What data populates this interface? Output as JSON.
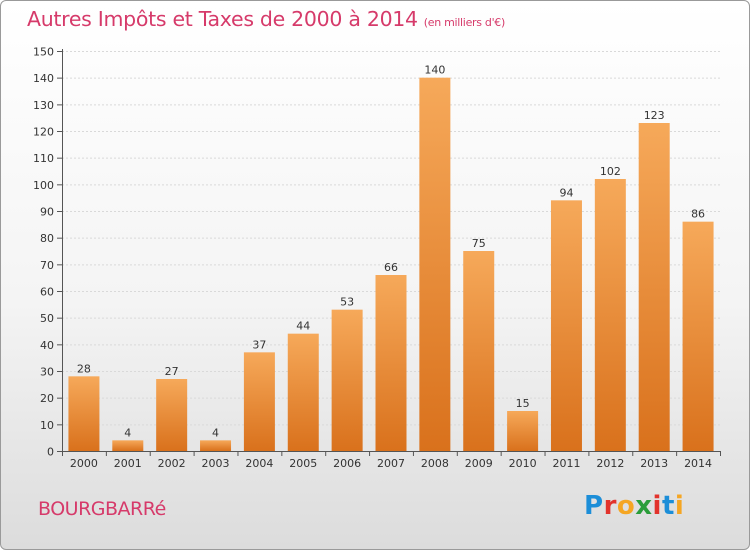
{
  "header": {
    "title": "Autres Impôts et Taxes de 2000 à 2014",
    "subtitle": "(en milliers d'€)"
  },
  "footer": {
    "commune": "BOURGBARRé",
    "brand_letters": [
      "P",
      "r",
      "o",
      "x",
      "i",
      "t",
      "i"
    ],
    "brand_colors": [
      "#1c8ed8",
      "#e2332c",
      "#f5a623",
      "#2a9d3a",
      "#e2332c",
      "#1c8ed8",
      "#f5a623"
    ]
  },
  "colors": {
    "bar_top": "#f6a95a",
    "bar_bottom": "#d9711c",
    "axis": "#555555",
    "grid": "#d9d9d9",
    "title": "#d63a6a"
  },
  "chart_data": {
    "type": "bar",
    "title": "Autres Impôts et Taxes de 2000 à 2014",
    "subtitle": "(en milliers d'€)",
    "xlabel": "",
    "ylabel": "",
    "categories": [
      "2000",
      "2001",
      "2002",
      "2003",
      "2004",
      "2005",
      "2006",
      "2007",
      "2008",
      "2009",
      "2010",
      "2011",
      "2012",
      "2013",
      "2014"
    ],
    "values": [
      28,
      4,
      27,
      4,
      37,
      44,
      53,
      66,
      140,
      75,
      15,
      94,
      102,
      123,
      86
    ],
    "ylim": [
      0,
      150
    ],
    "yticks": [
      0,
      10,
      20,
      30,
      40,
      50,
      60,
      70,
      80,
      90,
      100,
      110,
      120,
      130,
      140,
      150
    ],
    "grid": true,
    "data_labels": true
  }
}
